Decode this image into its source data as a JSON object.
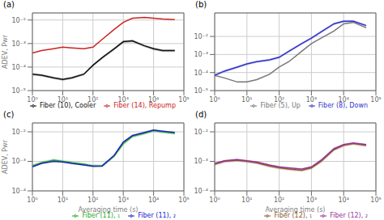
{
  "chart_data": [
    {
      "type": "line",
      "title": "(a)",
      "log": true,
      "grid": true,
      "legend": "lower right",
      "ylabel": "ADEV,  Pwr",
      "x": [
        1,
        2,
        5,
        10,
        20,
        50,
        100,
        200,
        500,
        1000,
        2000,
        5000,
        10000,
        20000,
        50000
      ],
      "xlim": [
        1,
        100000
      ],
      "xticks": [
        {
          "value": 1,
          "label": "10⁰"
        },
        {
          "value": 10,
          "label": "10¹"
        },
        {
          "value": 100,
          "label": "10²"
        },
        {
          "value": 1000,
          "label": "10³"
        },
        {
          "value": 10000,
          "label": "10⁴"
        },
        {
          "value": 100000,
          "label": "10⁵"
        }
      ],
      "ylim": [
        1e-05,
        0.02
      ],
      "yticks": [
        {
          "value": 1e-05,
          "label": "10⁻⁵"
        },
        {
          "value": 0.0001,
          "label": "10⁻⁴"
        },
        {
          "value": 0.001,
          "label": "10⁻³"
        },
        {
          "value": 0.01,
          "label": "10⁻²"
        }
      ],
      "series": [
        {
          "name": "Fiber (10), Cooler",
          "color": "#111111",
          "values": [
            5e-05,
            4.5e-05,
            3.5e-05,
            3e-05,
            3.5e-05,
            5e-05,
            0.00012,
            0.00025,
            0.0006,
            0.0012,
            0.0013,
            0.0008,
            0.0006,
            0.0005,
            0.0005
          ],
          "band_lower": [
            4.4e-05,
            3.96e-05,
            3.08e-05,
            2.64e-05,
            3.08e-05,
            4.4e-05,
            0.0001056,
            0.00022,
            0.000528,
            0.001056,
            0.001144,
            0.000704,
            0.000528,
            0.00044,
            0.00044
          ],
          "band_upper": [
            5.6e-05,
            5.04e-05,
            3.92e-05,
            3.36e-05,
            3.92e-05,
            5.6e-05,
            0.0001344,
            0.00028,
            0.000672,
            0.001344,
            0.001456,
            0.000896,
            0.000672,
            0.00056,
            0.00056
          ]
        },
        {
          "name": "Fiber (14), Repump",
          "color": "#cc2222",
          "values": [
            0.0004,
            0.0005,
            0.0006,
            0.0007,
            0.00065,
            0.0006,
            0.0007,
            0.0015,
            0.004,
            0.008,
            0.012,
            0.013,
            0.012,
            0.011,
            0.0105
          ]
        }
      ]
    },
    {
      "type": "line",
      "title": "(b)",
      "log": true,
      "grid": true,
      "legend": "lower right",
      "x": [
        1,
        2,
        5,
        10,
        20,
        50,
        100,
        200,
        500,
        1000,
        2000,
        5000,
        10000,
        20000,
        50000
      ],
      "xlim": [
        1,
        100000
      ],
      "xticks": [
        {
          "value": 1,
          "label": "10⁰"
        },
        {
          "value": 10,
          "label": "10¹"
        },
        {
          "value": 100,
          "label": "10²"
        },
        {
          "value": 1000,
          "label": "10³"
        },
        {
          "value": 10000,
          "label": "10⁴"
        },
        {
          "value": 100000,
          "label": "10⁵"
        }
      ],
      "ylim": [
        1e-05,
        0.2
      ],
      "yticks": [
        {
          "value": 1e-05,
          "label": "10⁻⁵"
        },
        {
          "value": 0.0001,
          "label": "10⁻⁴"
        },
        {
          "value": 0.001,
          "label": "10⁻³"
        },
        {
          "value": 0.01,
          "label": "10⁻²"
        }
      ],
      "series": [
        {
          "name": "Fiber (5), Up",
          "color": "#777777",
          "values": [
            7e-05,
            5e-05,
            3e-05,
            3e-05,
            4e-05,
            8e-05,
            0.0002,
            0.0004,
            0.0015,
            0.004,
            0.008,
            0.02,
            0.05,
            0.06,
            0.03
          ]
        },
        {
          "name": "Fiber (8), Down",
          "color": "#3333cc",
          "values": [
            7e-05,
            0.00012,
            0.0002,
            0.0003,
            0.0004,
            0.0005,
            0.0007,
            0.0015,
            0.004,
            0.008,
            0.018,
            0.05,
            0.07,
            0.07,
            0.04
          ],
          "band_lower": [
            5.95e-05,
            0.000102,
            0.00017,
            0.000255,
            0.00034,
            0.000425,
            0.000595,
            0.001275,
            0.0034,
            0.0068,
            0.0153,
            0.0425,
            0.0595,
            0.0595,
            0.034
          ],
          "band_upper": [
            8.05e-05,
            0.000138,
            0.00023,
            0.000345,
            0.00046,
            0.000575,
            0.000805,
            0.001725,
            0.0046,
            0.0092,
            0.0207,
            0.0575,
            0.0805,
            0.0805,
            0.046
          ]
        }
      ]
    },
    {
      "type": "line",
      "title": "(c)",
      "log": true,
      "grid": true,
      "legend": "lower right",
      "xlabel": "Averaging time    (s)",
      "ylabel": "ADEV,  Pwr",
      "x": [
        1,
        2,
        5,
        10,
        20,
        50,
        100,
        200,
        500,
        1000,
        2000,
        5000,
        10000,
        20000,
        50000
      ],
      "xlim": [
        1,
        100000
      ],
      "xticks": [
        {
          "value": 1,
          "label": "10⁰"
        },
        {
          "value": 10,
          "label": "10¹"
        },
        {
          "value": 100,
          "label": "10²"
        },
        {
          "value": 1000,
          "label": "10³"
        },
        {
          "value": 10000,
          "label": "10⁴"
        },
        {
          "value": 100000,
          "label": "10⁵"
        }
      ],
      "ylim": [
        0.0001,
        0.02
      ],
      "yticks": [
        {
          "value": 0.0001,
          "label": "10⁻⁴"
        },
        {
          "value": 0.001,
          "label": "10⁻³"
        },
        {
          "value": 0.01,
          "label": "10⁻²"
        }
      ],
      "series": [
        {
          "name": "Fiber (11),  ₁",
          "color": "#22aa22",
          "values": [
            0.0007,
            0.0009,
            0.0011,
            0.001,
            0.0009,
            0.0008,
            0.0007,
            0.0007,
            0.0015,
            0.004,
            0.007,
            0.009,
            0.011,
            0.01,
            0.009
          ],
          "band_lower": [
            0.000616,
            0.000792,
            0.000968,
            0.00088,
            0.000792,
            0.000704,
            0.000616,
            0.000616,
            0.00132,
            0.00352,
            0.00616,
            0.00792,
            0.00968,
            0.0088,
            0.00792
          ],
          "band_upper": [
            0.000784,
            0.001008,
            0.001232,
            0.00112,
            0.001008,
            0.000896,
            0.000784,
            0.000784,
            0.00168,
            0.00448,
            0.00784,
            0.01008,
            0.01232,
            0.0112,
            0.01008
          ]
        },
        {
          "name": "Fiber (11),  ₂",
          "color": "#2222cc",
          "values": [
            0.00065,
            0.00085,
            0.001,
            0.00095,
            0.00085,
            0.00075,
            0.00068,
            0.0007,
            0.0016,
            0.0045,
            0.0075,
            0.0095,
            0.0115,
            0.0105,
            0.0095
          ]
        }
      ]
    },
    {
      "type": "line",
      "title": "(d)",
      "log": true,
      "grid": true,
      "legend": "lower right",
      "xlabel": "Averaging time    (s)",
      "x": [
        1,
        2,
        5,
        10,
        20,
        50,
        100,
        200,
        500,
        1000,
        2000,
        5000,
        10000,
        20000,
        50000
      ],
      "xlim": [
        1,
        100000
      ],
      "xticks": [
        {
          "value": 1,
          "label": "10⁰"
        },
        {
          "value": 10,
          "label": "10¹"
        },
        {
          "value": 100,
          "label": "10²"
        },
        {
          "value": 1000,
          "label": "10³"
        },
        {
          "value": 10000,
          "label": "10⁴"
        },
        {
          "value": 100000,
          "label": "10⁵"
        }
      ],
      "ylim": [
        0.0001,
        0.02
      ],
      "yticks": [
        {
          "value": 0.0001,
          "label": "10⁻⁴"
        },
        {
          "value": 0.001,
          "label": "10⁻³"
        },
        {
          "value": 0.01,
          "label": "10⁻²"
        }
      ],
      "series": [
        {
          "name": "Fiber (12),  ₁",
          "color": "#8B5A2B",
          "values": [
            0.0008,
            0.001,
            0.0011,
            0.001,
            0.0009,
            0.0007,
            0.0006,
            0.00055,
            0.0005,
            0.0006,
            0.001,
            0.0025,
            0.0035,
            0.004,
            0.0035
          ],
          "band_lower": [
            0.000704,
            0.00088,
            0.000968,
            0.00088,
            0.000792,
            0.000616,
            0.000528,
            0.000484,
            0.00044,
            0.000528,
            0.00088,
            0.0022,
            0.00308,
            0.00352,
            0.00308
          ],
          "band_upper": [
            0.000896,
            0.00112,
            0.001232,
            0.00112,
            0.001008,
            0.000784,
            0.000672,
            0.000616,
            0.00056,
            0.000672,
            0.00112,
            0.0028,
            0.00392,
            0.00448,
            0.00392
          ]
        },
        {
          "name": "Fiber (12),  ₂",
          "color": "#993399",
          "values": [
            0.00085,
            0.00105,
            0.00115,
            0.00105,
            0.00095,
            0.00075,
            0.00065,
            0.0006,
            0.00055,
            0.00065,
            0.0011,
            0.0027,
            0.0037,
            0.0042,
            0.0037
          ]
        }
      ]
    }
  ]
}
